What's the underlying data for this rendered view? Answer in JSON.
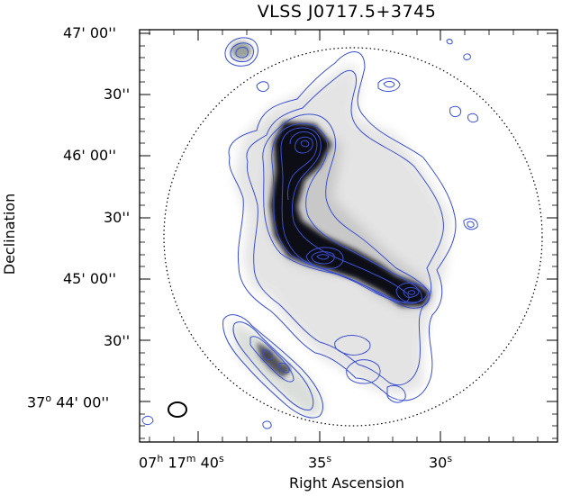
{
  "figure": {
    "title": "VLSS J0717.5+3745",
    "ylabel": "Declination",
    "xlabel": "Right Ascension",
    "yticks": [
      {
        "deg": "",
        "min": "47'",
        "sec": "00''"
      },
      {
        "deg": "",
        "min": "",
        "sec": "30''"
      },
      {
        "deg": "",
        "min": "46'",
        "sec": "00''"
      },
      {
        "deg": "",
        "min": "",
        "sec": "30''"
      },
      {
        "deg": "",
        "min": "45'",
        "sec": "00''"
      },
      {
        "deg": "",
        "min": "",
        "sec": "30''"
      },
      {
        "deg": "37",
        "deg_sup": "o",
        "min": "44'",
        "sec": "00''"
      }
    ],
    "xticks": [
      {
        "h": "07",
        "h_sup": "h",
        "m": "17",
        "m_sup": "m",
        "s": "40",
        "s_sup": "s"
      },
      {
        "s": "35",
        "s_sup": "s"
      },
      {
        "s": "30",
        "s_sup": "s"
      }
    ]
  },
  "colors": {
    "contour": "#3a4fd0",
    "greyscale_dark": "#0a0a14",
    "greyscale_light": "#dcdcdc"
  }
}
